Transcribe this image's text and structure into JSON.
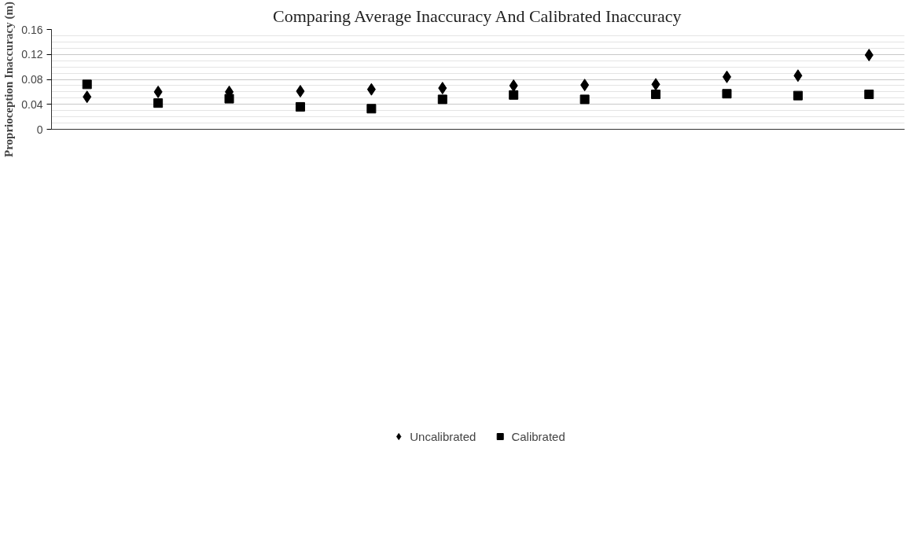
{
  "chart_data": {
    "type": "scatter",
    "title": "Comparing Average Inaccuracy And Calibrated Inaccuracy",
    "ylabel": "Proprioception Inaccuracy (m)",
    "categories": [
      null,
      null,
      null,
      null,
      null,
      null,
      null,
      null,
      null,
      null,
      null,
      null
    ],
    "series": [
      {
        "name": "Uncalibrated",
        "color": "#000000",
        "marker": "diamond",
        "values": [
          0.052,
          0.06,
          0.06,
          0.061,
          0.064,
          0.066,
          0.07,
          0.071,
          0.072,
          0.084,
          0.086,
          0.119
        ]
      },
      {
        "name": "Calibrated",
        "color": "#000000",
        "marker": "square",
        "values": [
          0.072,
          0.042,
          0.049,
          0.036,
          0.033,
          0.048,
          0.055,
          0.048,
          0.056,
          0.057,
          0.054,
          0.056
        ]
      }
    ],
    "ylim": [
      0,
      0.16
    ],
    "yticks": [
      0,
      {
        "value": 0.01,
        "label": null
      },
      {
        "value": 0.02,
        "label": null
      },
      {
        "value": 0.03,
        "label": null
      },
      0.04,
      {
        "value": 0.05,
        "label": null
      },
      {
        "value": 0.06,
        "label": null
      },
      {
        "value": 0.07,
        "label": null
      },
      0.08,
      {
        "value": 0.09,
        "label": null
      },
      {
        "value": 0.1,
        "label": null
      },
      {
        "value": 0.11,
        "label": null
      },
      0.12,
      {
        "value": 0.13,
        "label": null
      },
      {
        "value": 0.14,
        "label": null
      },
      {
        "value": 0.15,
        "label": null
      },
      0.16
    ],
    "grid": "y",
    "legend": "bottom",
    "tick_labels": "y"
  }
}
